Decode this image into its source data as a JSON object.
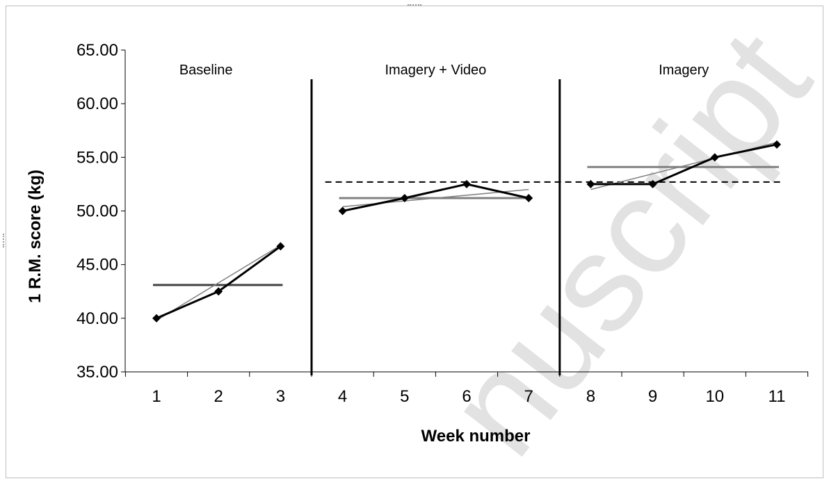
{
  "chart_data": {
    "type": "line",
    "xlabel": "Week number",
    "ylabel": "1 R.M. score (kg)",
    "ylim": [
      35,
      65
    ],
    "yticks": [
      "35.00",
      "40.00",
      "45.00",
      "50.00",
      "55.00",
      "60.00",
      "65.00"
    ],
    "xticks": [
      "1",
      "2",
      "3",
      "4",
      "5",
      "6",
      "7",
      "8",
      "9",
      "10",
      "11"
    ],
    "grid": false,
    "phases": [
      {
        "label": "Baseline",
        "weeks": [
          1,
          3
        ]
      },
      {
        "label": "Imagery + Video",
        "weeks": [
          4,
          7
        ]
      },
      {
        "label": "Imagery",
        "weeks": [
          8,
          11
        ]
      }
    ],
    "series": [
      {
        "weeks": [
          1,
          2,
          3
        ],
        "values": [
          40.0,
          42.5,
          46.7
        ],
        "color": "#000000",
        "marker": "diamond"
      },
      {
        "weeks": [
          4,
          5,
          6,
          7
        ],
        "values": [
          50.0,
          51.2,
          52.5,
          51.2
        ],
        "color": "#000000",
        "marker": "diamond"
      },
      {
        "weeks": [
          8,
          9,
          10,
          11
        ],
        "values": [
          52.5,
          52.5,
          55.0,
          56.2
        ],
        "color": "#000000",
        "marker": "diamond"
      }
    ],
    "phase_means": [
      {
        "from": 1,
        "to": 3,
        "value": 43.1,
        "color": "#404040"
      },
      {
        "from": 4,
        "to": 7,
        "value": 51.2,
        "color": "#808080"
      },
      {
        "from": 8,
        "to": 11,
        "value": 54.1,
        "color": "#808080"
      }
    ],
    "trend_lines": [
      {
        "from": 1,
        "to": 3,
        "start": 39.8,
        "end": 46.8,
        "color": "#808080"
      },
      {
        "from": 4,
        "to": 7,
        "start": 50.4,
        "end": 52.0,
        "color": "#808080"
      },
      {
        "from": 8,
        "to": 11,
        "start": 52.0,
        "end": 56.4,
        "color": "#808080"
      }
    ],
    "reference_line": {
      "from": 4,
      "to": 11,
      "value": 52.7,
      "style": "dashed",
      "color": "#000000"
    },
    "phase_dividers": [
      3.5,
      7.5
    ]
  },
  "watermark": "nuscript"
}
